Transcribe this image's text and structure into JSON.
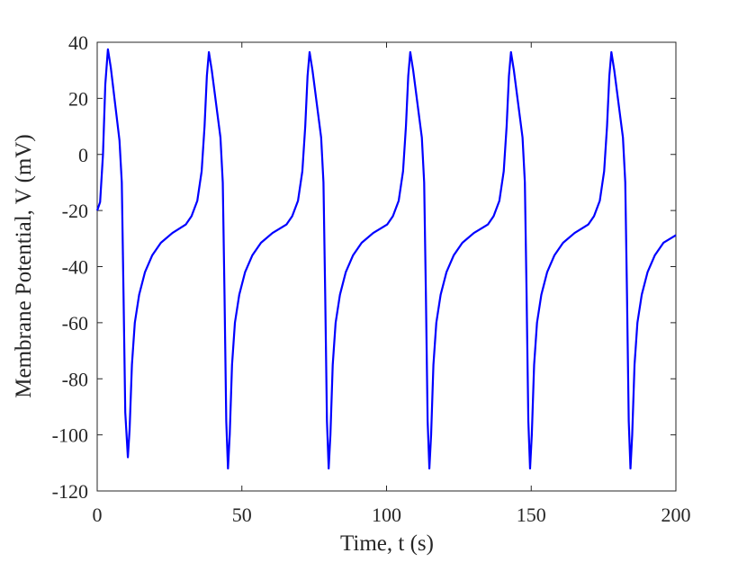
{
  "chart_data": {
    "type": "line",
    "xlabel": "Time, t (s)",
    "ylabel": "Membrane Potential, V (mV)",
    "xlim": [
      0,
      200
    ],
    "xticks": [
      0,
      50,
      100,
      150,
      200
    ],
    "ylim": [
      -120,
      40
    ],
    "yticks": [
      -120,
      -100,
      -80,
      -60,
      -40,
      -20,
      0,
      20,
      40
    ],
    "series": [
      {
        "color": "#0000ff",
        "x": [
          0,
          1,
          2,
          2.8,
          3.7,
          4.7,
          6.2,
          7.7,
          8.5,
          9.1,
          9.7,
          10.6,
          11.2,
          12,
          13,
          14.5,
          16.5,
          19,
          22,
          26,
          30.6,
          32.6,
          34.6,
          36.1,
          37.1,
          37.9,
          38.6,
          39.6,
          41.1,
          42.6,
          43.4,
          44,
          44.6,
          45.2,
          45.8,
          46.6,
          47.6,
          49.1,
          51.1,
          53.6,
          56.6,
          60.6,
          65.4,
          67.4,
          69.4,
          70.9,
          71.9,
          72.7,
          73.4,
          74.4,
          75.9,
          77.4,
          78.2,
          78.8,
          79.4,
          80,
          80.6,
          81.4,
          82.4,
          83.9,
          85.9,
          88.4,
          91.4,
          95.4,
          100.2,
          102.2,
          104.2,
          105.7,
          106.7,
          107.5,
          108.2,
          109.2,
          110.7,
          112.2,
          113,
          113.6,
          114.2,
          114.8,
          115.4,
          116.2,
          117.2,
          118.7,
          120.7,
          123.2,
          126.2,
          130.2,
          135,
          137,
          139,
          140.5,
          141.5,
          142.3,
          143,
          144,
          145.5,
          147,
          147.8,
          148.4,
          149,
          149.6,
          150.2,
          151,
          152,
          153.5,
          155.5,
          158,
          161,
          165,
          169.7,
          171.7,
          173.7,
          175.2,
          176.2,
          177,
          177.7,
          178.7,
          180.2,
          181.7,
          182.5,
          183.1,
          183.7,
          184.3,
          184.9,
          185.7,
          186.7,
          188.2,
          190.2,
          192.7,
          195.7,
          200
        ],
        "values": [
          -20,
          -17,
          0,
          25,
          37.5,
          31,
          18,
          5,
          -10,
          -50,
          -92,
          -108,
          -98,
          -75,
          -60,
          -50,
          -42,
          -36,
          -31.5,
          -28,
          -25,
          -22,
          -16.5,
          -6,
          10,
          28,
          36.5,
          30,
          18,
          6,
          -10,
          -50,
          -95,
          -112,
          -100,
          -75,
          -60,
          -50,
          -42,
          -36,
          -31.5,
          -28,
          -25,
          -22,
          -16.5,
          -6,
          10,
          28,
          36.5,
          30,
          18,
          6,
          -10,
          -50,
          -95,
          -112,
          -100,
          -75,
          -60,
          -50,
          -42,
          -36,
          -31.5,
          -28,
          -25,
          -22,
          -16.5,
          -6,
          10,
          28,
          36.5,
          30,
          18,
          6,
          -10,
          -50,
          -95,
          -112,
          -100,
          -75,
          -60,
          -50,
          -42,
          -36,
          -31.5,
          -28,
          -25,
          -22,
          -16.5,
          -6,
          10,
          28,
          36.5,
          30,
          18,
          6,
          -10,
          -50,
          -95,
          -112,
          -100,
          -75,
          -60,
          -50,
          -42,
          -36,
          -31.5,
          -28,
          -25,
          -22,
          -16.5,
          -6,
          10,
          28,
          36.5,
          30,
          18,
          6,
          -10,
          -50,
          -95,
          -112,
          -100,
          -75,
          -60,
          -50,
          -42,
          -36,
          -31.5,
          -28.8
        ]
      }
    ]
  }
}
